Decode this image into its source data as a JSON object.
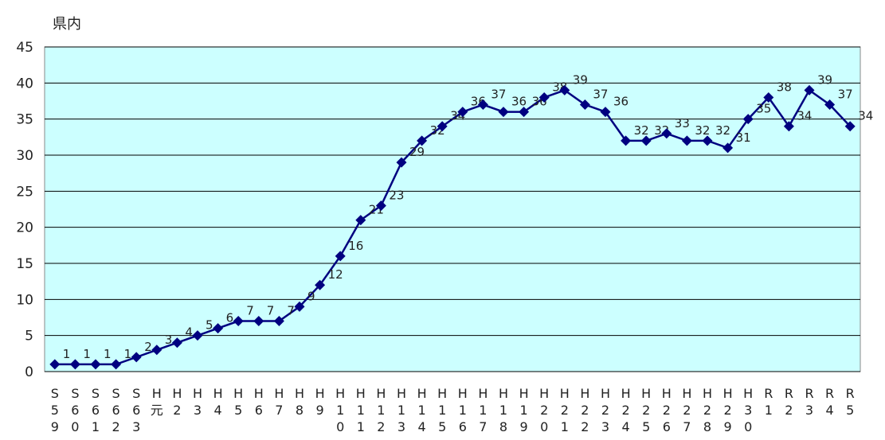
{
  "chart_data": {
    "type": "line",
    "ylabel": "県内",
    "ylim": [
      0,
      45
    ],
    "yticks": [
      "0",
      "5",
      "10",
      "15",
      "20",
      "25",
      "30",
      "35",
      "40",
      "45"
    ],
    "grid": true,
    "colors": {
      "plot_background": "#ccffff",
      "line": "#000080",
      "marker": "#000080",
      "grid": "#000000"
    },
    "categories": [
      [
        "S",
        "5",
        "9"
      ],
      [
        "S",
        "6",
        "0"
      ],
      [
        "S",
        "6",
        "1"
      ],
      [
        "S",
        "6",
        "2"
      ],
      [
        "S",
        "6",
        "3"
      ],
      [
        "H",
        "元"
      ],
      [
        "H",
        "2"
      ],
      [
        "H",
        "3"
      ],
      [
        "H",
        "4"
      ],
      [
        "H",
        "5"
      ],
      [
        "H",
        "6"
      ],
      [
        "H",
        "7"
      ],
      [
        "H",
        "8"
      ],
      [
        "H",
        "9"
      ],
      [
        "H",
        "1",
        "0"
      ],
      [
        "H",
        "1",
        "1"
      ],
      [
        "H",
        "1",
        "2"
      ],
      [
        "H",
        "1",
        "3"
      ],
      [
        "H",
        "1",
        "4"
      ],
      [
        "H",
        "1",
        "5"
      ],
      [
        "H",
        "1",
        "6"
      ],
      [
        "H",
        "1",
        "7"
      ],
      [
        "H",
        "1",
        "8"
      ],
      [
        "H",
        "1",
        "9"
      ],
      [
        "H",
        "2",
        "0"
      ],
      [
        "H",
        "2",
        "1"
      ],
      [
        "H",
        "2",
        "2"
      ],
      [
        "H",
        "2",
        "3"
      ],
      [
        "H",
        "2",
        "4"
      ],
      [
        "H",
        "2",
        "5"
      ],
      [
        "H",
        "2",
        "6"
      ],
      [
        "H",
        "2",
        "7"
      ],
      [
        "H",
        "2",
        "8"
      ],
      [
        "H",
        "2",
        "9"
      ],
      [
        "H",
        "3",
        "0"
      ],
      [
        "R",
        "1"
      ],
      [
        "R",
        "2"
      ],
      [
        "R",
        "3"
      ],
      [
        "R",
        "4"
      ],
      [
        "R",
        "5"
      ]
    ],
    "series": [
      {
        "values": [
          1,
          1,
          1,
          1,
          2,
          3,
          4,
          5,
          6,
          7,
          7,
          7,
          9,
          12,
          16,
          21,
          23,
          29,
          32,
          34,
          36,
          37,
          36,
          36,
          38,
          39,
          37,
          36,
          32,
          32,
          33,
          32,
          32,
          31,
          35,
          38,
          34,
          39,
          37,
          34
        ]
      }
    ],
    "data_labels": [
      "1",
      "1",
      "1",
      "1",
      "2",
      "3",
      "4",
      "5",
      "6",
      "7",
      "7",
      "7",
      "9",
      "12",
      "16",
      "21",
      "23",
      "29",
      "32",
      "34",
      "36",
      "37",
      "36",
      "36",
      "38",
      "39",
      "37",
      "36",
      "32",
      "32",
      "33",
      "32",
      "32",
      "31",
      "35",
      "38",
      "34",
      "39",
      "37",
      "34"
    ]
  }
}
